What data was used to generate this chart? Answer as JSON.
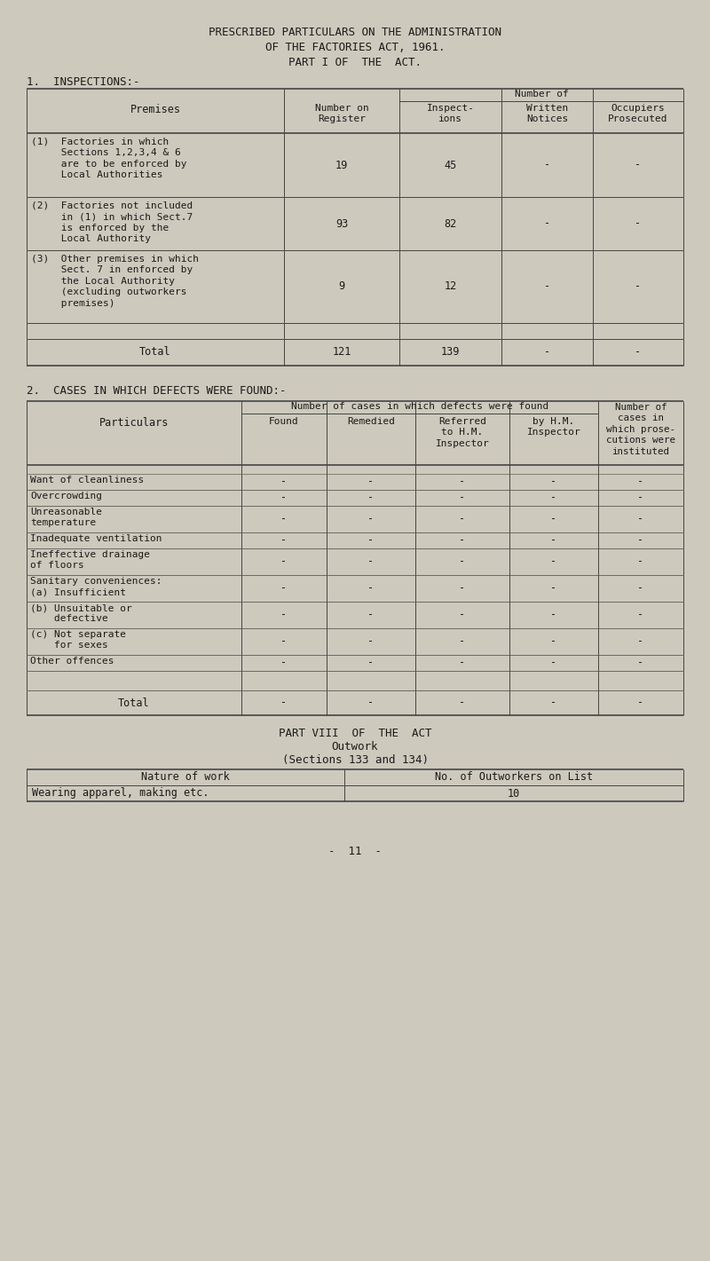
{
  "bg_color": "#cdc9bc",
  "text_color": "#1a1a1a",
  "title_lines": [
    "PRESCRIBED PARTICULARS ON THE ADMINISTRATION",
    "OF THE FACTORIES ACT, 1961.",
    "PART I OF  THE  ACT."
  ],
  "section1_label": "1.  INSPECTIONS:-",
  "section2_label": "2.  CASES IN WHICH DEFECTS WERE FOUND:-",
  "t1_row_labels": [
    "(1)  Factories in which\n     Sections 1,2,3,4 & 6\n     are to be enforced by\n     Local Authorities",
    "(2)  Factories not included\n     in (1) in which Sect.7\n     is enforced by the\n     Local Authority",
    "(3)  Other premises in which\n     Sect. 7 in enforced by\n     the Local Authority\n     (excluding outworkers\n     premises)"
  ],
  "t1_row_data": [
    [
      "19",
      "45",
      "-",
      "-"
    ],
    [
      "93",
      "82",
      "-",
      "-"
    ],
    [
      "9",
      "12",
      "-",
      "-"
    ]
  ],
  "t1_total": [
    "121",
    "139",
    "-",
    "-"
  ],
  "t2_labels": [
    "Want of cleanliness",
    "Overcrowding",
    "Unreasonable\ntemperature",
    "Inadequate ventilation",
    "Ineffective drainage\nof floors",
    "Sanitary conveniences:\n(a) Insufficient",
    "(b) Unsuitable or\n    defective",
    "(c) Not separate\n    for sexes",
    "Other offences"
  ],
  "t3_title": [
    "PART VIII  OF  THE  ACT",
    "Outwork",
    "(Sections 133 and 134)"
  ],
  "t3_nature": "Wearing apparel, making etc.",
  "t3_count": "10",
  "page_num": "-  11  -"
}
